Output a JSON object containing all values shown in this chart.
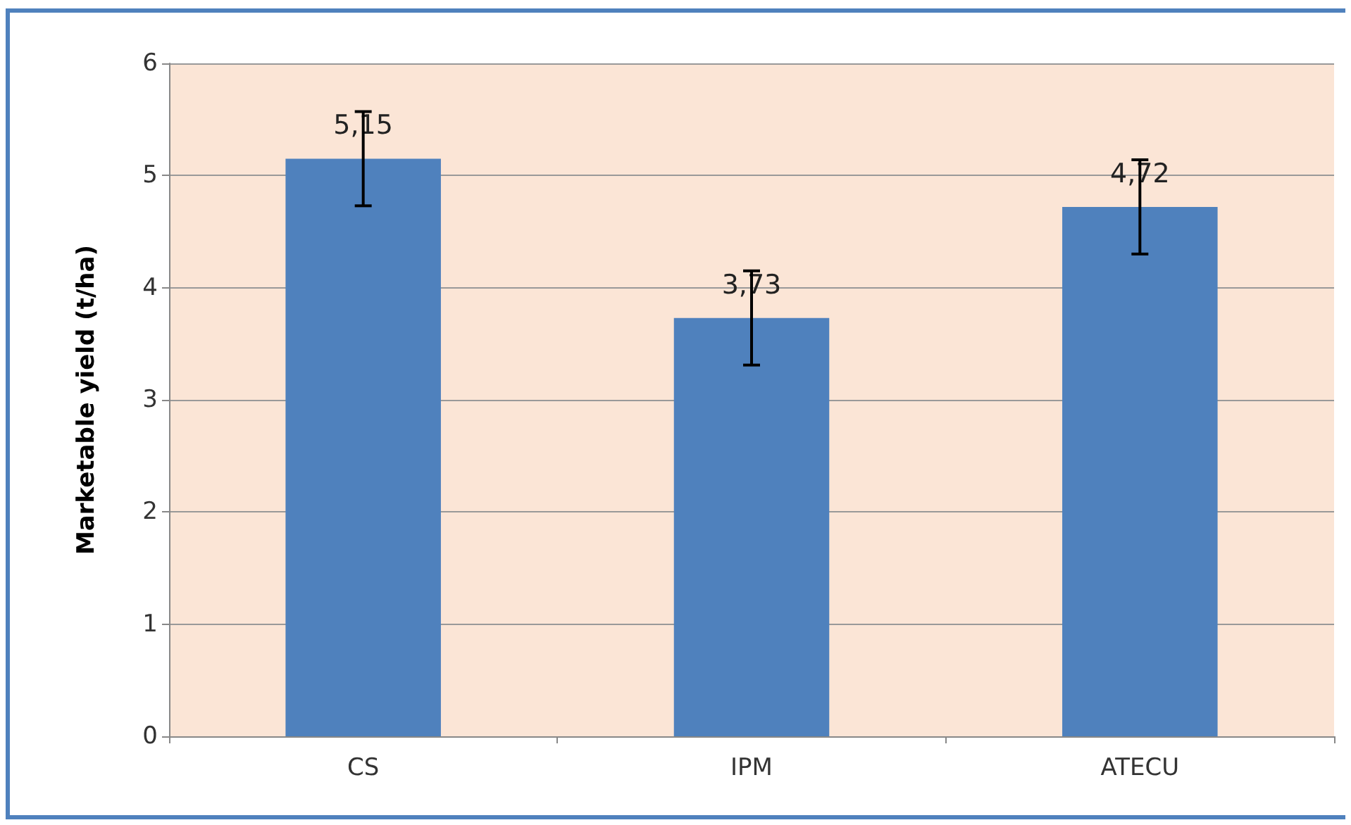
{
  "chart_data": {
    "type": "bar",
    "ylabel": "Marketable yield (t/ha)",
    "categories": [
      "CS",
      "IPM",
      "ATECU"
    ],
    "values": [
      5.15,
      3.73,
      4.72
    ],
    "color": "#4f81bd",
    "errors": [
      0.42,
      0.42,
      0.42
    ],
    "value_labels": [
      "5,15",
      "3,73",
      "4,72"
    ],
    "ylim": [
      0,
      6
    ],
    "yticks": [
      0,
      1,
      2,
      3,
      4,
      5,
      6
    ],
    "grid": "y"
  }
}
